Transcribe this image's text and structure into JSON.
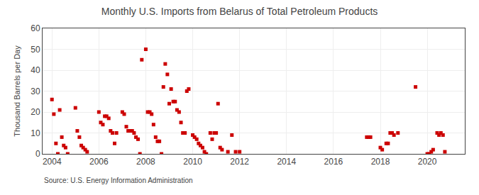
{
  "chart_data": {
    "type": "scatter",
    "title": "Monthly U.S. Imports from Belarus of Total Petroleum Products",
    "y_label": "Thousand Barrels per Day",
    "annotations": [
      "Source: U.S. Energy Information Administration"
    ],
    "color": "#cc0000",
    "marker": "square",
    "grid": true,
    "xlim": [
      2003.6,
      2021.6
    ],
    "xticks": [
      2004,
      2006,
      2008,
      2010,
      2012,
      2014,
      2016,
      2018,
      2020
    ],
    "ylim": [
      0,
      60
    ],
    "yticks": [
      0,
      10,
      20,
      30,
      40,
      50,
      60
    ],
    "x": [
      2004.0,
      2004.08,
      2004.17,
      2004.25,
      2004.33,
      2004.42,
      2004.5,
      2004.58,
      2004.67,
      2005.0,
      2005.08,
      2005.17,
      2005.25,
      2005.33,
      2005.42,
      2005.5,
      2006.0,
      2006.08,
      2006.17,
      2006.25,
      2006.33,
      2006.42,
      2006.5,
      2006.58,
      2006.67,
      2006.75,
      2007.0,
      2007.08,
      2007.17,
      2007.25,
      2007.33,
      2007.42,
      2007.5,
      2007.58,
      2007.67,
      2007.75,
      2007.83,
      2008.0,
      2008.08,
      2008.17,
      2008.25,
      2008.33,
      2008.42,
      2008.5,
      2008.58,
      2008.67,
      2008.75,
      2008.83,
      2008.92,
      2009.0,
      2009.08,
      2009.17,
      2009.25,
      2009.33,
      2009.42,
      2009.5,
      2009.58,
      2009.67,
      2009.75,
      2009.83,
      2010.0,
      2010.08,
      2010.17,
      2010.25,
      2010.33,
      2010.42,
      2010.5,
      2010.58,
      2010.75,
      2010.83,
      2010.92,
      2011.0,
      2011.08,
      2011.17,
      2011.25,
      2011.5,
      2011.67,
      2011.83,
      2012.0,
      2017.42,
      2017.5,
      2017.58,
      2018.0,
      2018.08,
      2018.25,
      2018.33,
      2018.42,
      2018.5,
      2018.58,
      2018.75,
      2019.5,
      2020.0,
      2020.08,
      2020.17,
      2020.25,
      2020.42,
      2020.5,
      2020.58,
      2020.67,
      2020.75
    ],
    "values": [
      26,
      19,
      5,
      0,
      21,
      8,
      4,
      3,
      0,
      22,
      11,
      8,
      4,
      3,
      2,
      1,
      20,
      15,
      14,
      18,
      18,
      17,
      11,
      10,
      5,
      10,
      20,
      19,
      13,
      11,
      11,
      11,
      10,
      8,
      7,
      0,
      45,
      50,
      20,
      20,
      19,
      14,
      8,
      6,
      6,
      0,
      32,
      43,
      38,
      24,
      31,
      25,
      25,
      21,
      20,
      15,
      10,
      10,
      30,
      31,
      9,
      8,
      7,
      5,
      4,
      3,
      1,
      0,
      10,
      7,
      10,
      10,
      24,
      3,
      2,
      1,
      9,
      1,
      1,
      8,
      8,
      8,
      3,
      2,
      5,
      5,
      10,
      10,
      9,
      10,
      32,
      0,
      0,
      1,
      2,
      10,
      9,
      10,
      9,
      1
    ]
  }
}
